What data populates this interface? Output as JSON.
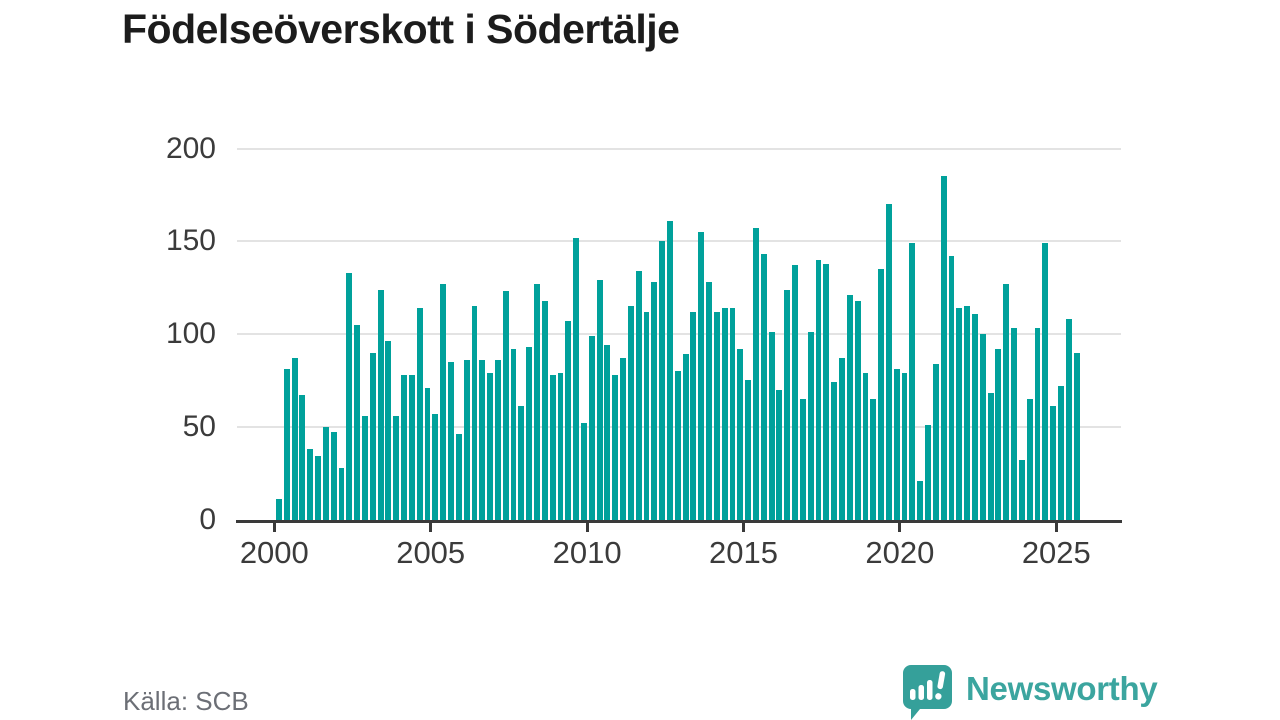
{
  "title": "Födelseöverskott i Södertälje",
  "source": "Källa: SCB",
  "branding": {
    "name": "Newsworthy",
    "icon": "newsworthy-speech-bubble-chart-logo",
    "color": "#3BA59F"
  },
  "chart_data": {
    "type": "bar",
    "title": "Födelseöverskott i Södertälje",
    "frequency": "quarterly",
    "start": "2000 Q1",
    "end": "2025 Q3",
    "values": [
      11,
      81,
      87,
      67,
      38,
      34,
      50,
      47,
      28,
      133,
      105,
      56,
      90,
      124,
      96,
      56,
      78,
      78,
      114,
      71,
      57,
      127,
      85,
      46,
      86,
      115,
      86,
      79,
      86,
      123,
      92,
      61,
      93,
      127,
      118,
      78,
      79,
      107,
      152,
      52,
      99,
      129,
      94,
      78,
      87,
      115,
      134,
      112,
      128,
      150,
      161,
      80,
      89,
      112,
      155,
      128,
      112,
      114,
      114,
      92,
      75,
      157,
      143,
      101,
      70,
      124,
      137,
      65,
      101,
      140,
      138,
      74,
      87,
      121,
      118,
      79,
      65,
      135,
      170,
      81,
      79,
      149,
      21,
      51,
      84,
      185,
      142,
      114,
      115,
      111,
      100,
      68,
      92,
      127,
      103,
      32,
      65,
      103,
      149,
      61,
      72,
      108,
      90
    ],
    "x_ticks": [
      2000,
      2005,
      2010,
      2015,
      2020,
      2025
    ],
    "y_ticks": [
      0,
      50,
      100,
      150,
      200
    ],
    "ylim": [
      0,
      200
    ],
    "bar_color": "#00A19B",
    "grid": true,
    "legend": "none"
  }
}
